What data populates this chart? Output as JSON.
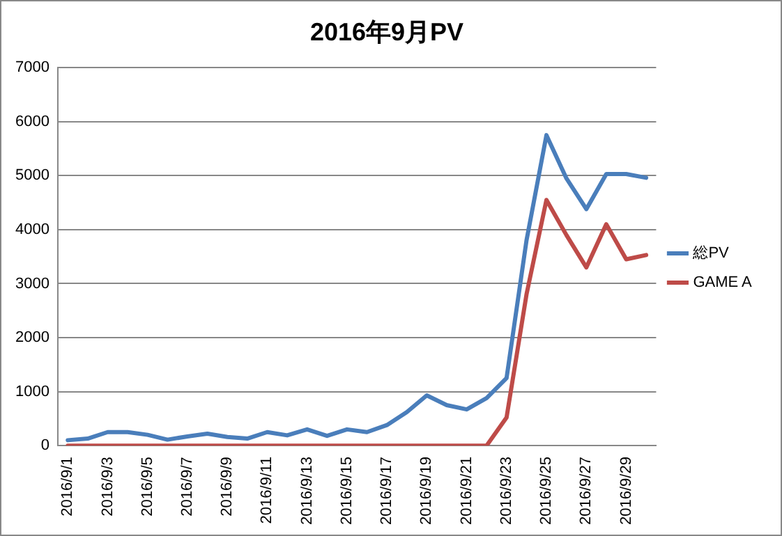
{
  "chart_data": {
    "type": "line",
    "title": "2016年9月PV",
    "categories": [
      "2016/9/1",
      null,
      "2016/9/3",
      null,
      "2016/9/5",
      null,
      "2016/9/7",
      null,
      "2016/9/9",
      null,
      "2016/9/11",
      null,
      "2016/9/13",
      null,
      "2016/9/15",
      null,
      "2016/9/17",
      null,
      "2016/9/19",
      null,
      "2016/9/21",
      null,
      "2016/9/23",
      null,
      "2016/9/25",
      null,
      "2016/9/27",
      null,
      "2016/9/29",
      null
    ],
    "series": [
      {
        "name": "総PV",
        "color": "#4a7ebb",
        "values": [
          100,
          130,
          250,
          250,
          200,
          110,
          170,
          220,
          160,
          130,
          250,
          190,
          300,
          180,
          300,
          250,
          380,
          620,
          930,
          750,
          670,
          880,
          1250,
          3800,
          5750,
          4950,
          4380,
          5030,
          5030,
          4960
        ]
      },
      {
        "name": "GAME A",
        "color": "#be4b48",
        "values": [
          0,
          0,
          0,
          0,
          0,
          0,
          0,
          0,
          0,
          0,
          0,
          0,
          0,
          0,
          0,
          0,
          0,
          0,
          0,
          0,
          0,
          0,
          520,
          2800,
          4550,
          3900,
          3300,
          4100,
          3450,
          3530
        ]
      }
    ],
    "ylim": [
      0,
      7000
    ],
    "yticks": [
      0,
      1000,
      2000,
      3000,
      4000,
      5000,
      6000,
      7000
    ],
    "grid": "y",
    "legend": "right",
    "marker": "none",
    "line_style": "solid"
  }
}
